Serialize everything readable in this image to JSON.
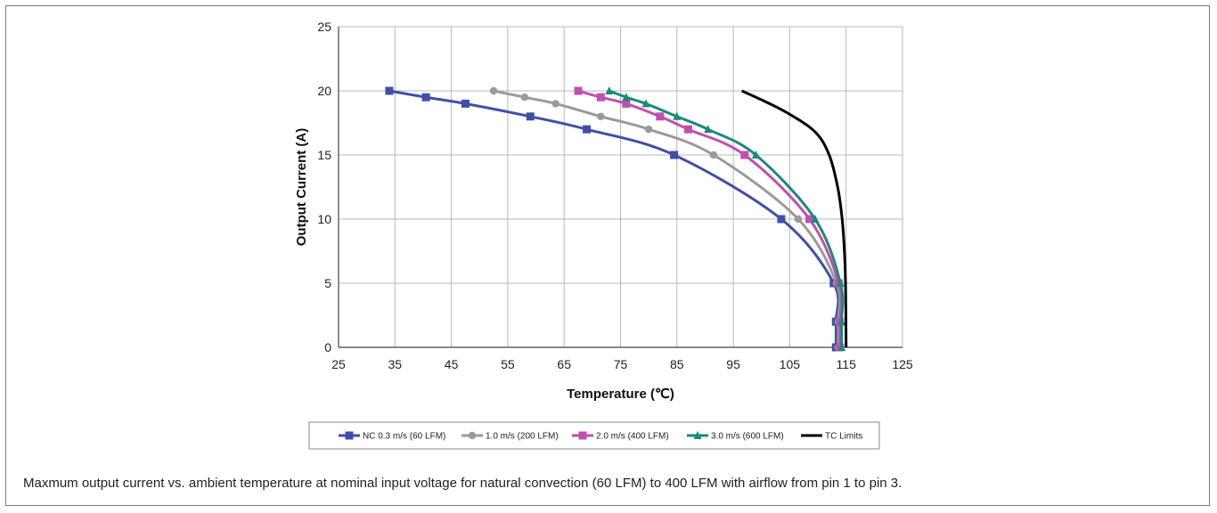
{
  "caption": "Maxmum output current vs. ambient temperature at nominal input voltage for natural convection (60 LFM) to 400 LFM with airflow from pin 1 to pin 3.",
  "chart_data": {
    "type": "line",
    "xlabel": "Temperature (℃)",
    "ylabel": "Output Current (A)",
    "xlim": [
      25,
      125
    ],
    "ylim": [
      0,
      25
    ],
    "x_ticks": [
      25,
      35,
      45,
      55,
      65,
      75,
      85,
      95,
      105,
      115,
      125
    ],
    "y_ticks": [
      0,
      5,
      10,
      15,
      20,
      25
    ],
    "grid": true,
    "legend_position": "bottom",
    "series": [
      {
        "name": "NC 0.3 m/s (60 LFM)",
        "color": "#3f4fa8",
        "marker": "square",
        "x": [
          34,
          40.5,
          47.5,
          59,
          69,
          84.5,
          103.5,
          112.8,
          113.2,
          113.2
        ],
        "y": [
          20,
          19.5,
          19,
          18,
          17,
          15,
          10,
          5,
          2,
          0
        ]
      },
      {
        "name": "1.0 m/s (200 LFM)",
        "color": "#9a9a9a",
        "marker": "diamond",
        "x": [
          52.5,
          58,
          63.5,
          71.5,
          80,
          91.5,
          106.5,
          113.3,
          113.6,
          113.6
        ],
        "y": [
          20,
          19.5,
          19,
          18,
          17,
          15,
          10,
          5,
          2,
          0
        ]
      },
      {
        "name": "2.0 m/s (400 LFM)",
        "color": "#c050b0",
        "marker": "square",
        "x": [
          67.5,
          71.5,
          76,
          82,
          87,
          97,
          108.5,
          113.7,
          113.9,
          113.9
        ],
        "y": [
          20,
          19.5,
          19,
          18,
          17,
          15,
          10,
          5,
          2,
          0
        ]
      },
      {
        "name": "3.0 m/s (600 LFM)",
        "color": "#1a8a7a",
        "marker": "triangle",
        "x": [
          73,
          76,
          79.5,
          85,
          90.5,
          99,
          109.5,
          114,
          114.2,
          114.2
        ],
        "y": [
          20,
          19.5,
          19,
          18,
          17,
          15,
          10,
          5,
          2,
          0
        ]
      },
      {
        "name": "TC Limits",
        "color": "#000000",
        "marker": "none",
        "x": [
          96.5,
          100,
          104.5,
          109.5,
          112,
          113.5,
          114.3,
          114.7,
          114.9,
          115
        ],
        "y": [
          20,
          19.3,
          18.3,
          16.8,
          15,
          12.5,
          10,
          7.5,
          5,
          0
        ]
      }
    ]
  }
}
